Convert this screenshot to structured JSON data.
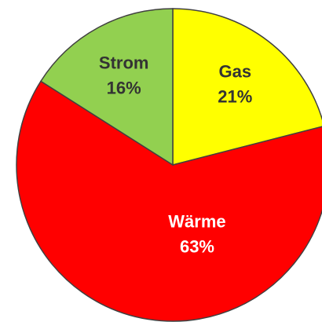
{
  "chart_data": {
    "type": "pie",
    "categories": [
      "Gas",
      "Wärme",
      "Strom"
    ],
    "values": [
      21,
      63,
      16
    ],
    "value_labels": [
      "21%",
      "63%",
      "16%"
    ],
    "colors": [
      "#ffff00",
      "#ff0000",
      "#92d050"
    ]
  }
}
